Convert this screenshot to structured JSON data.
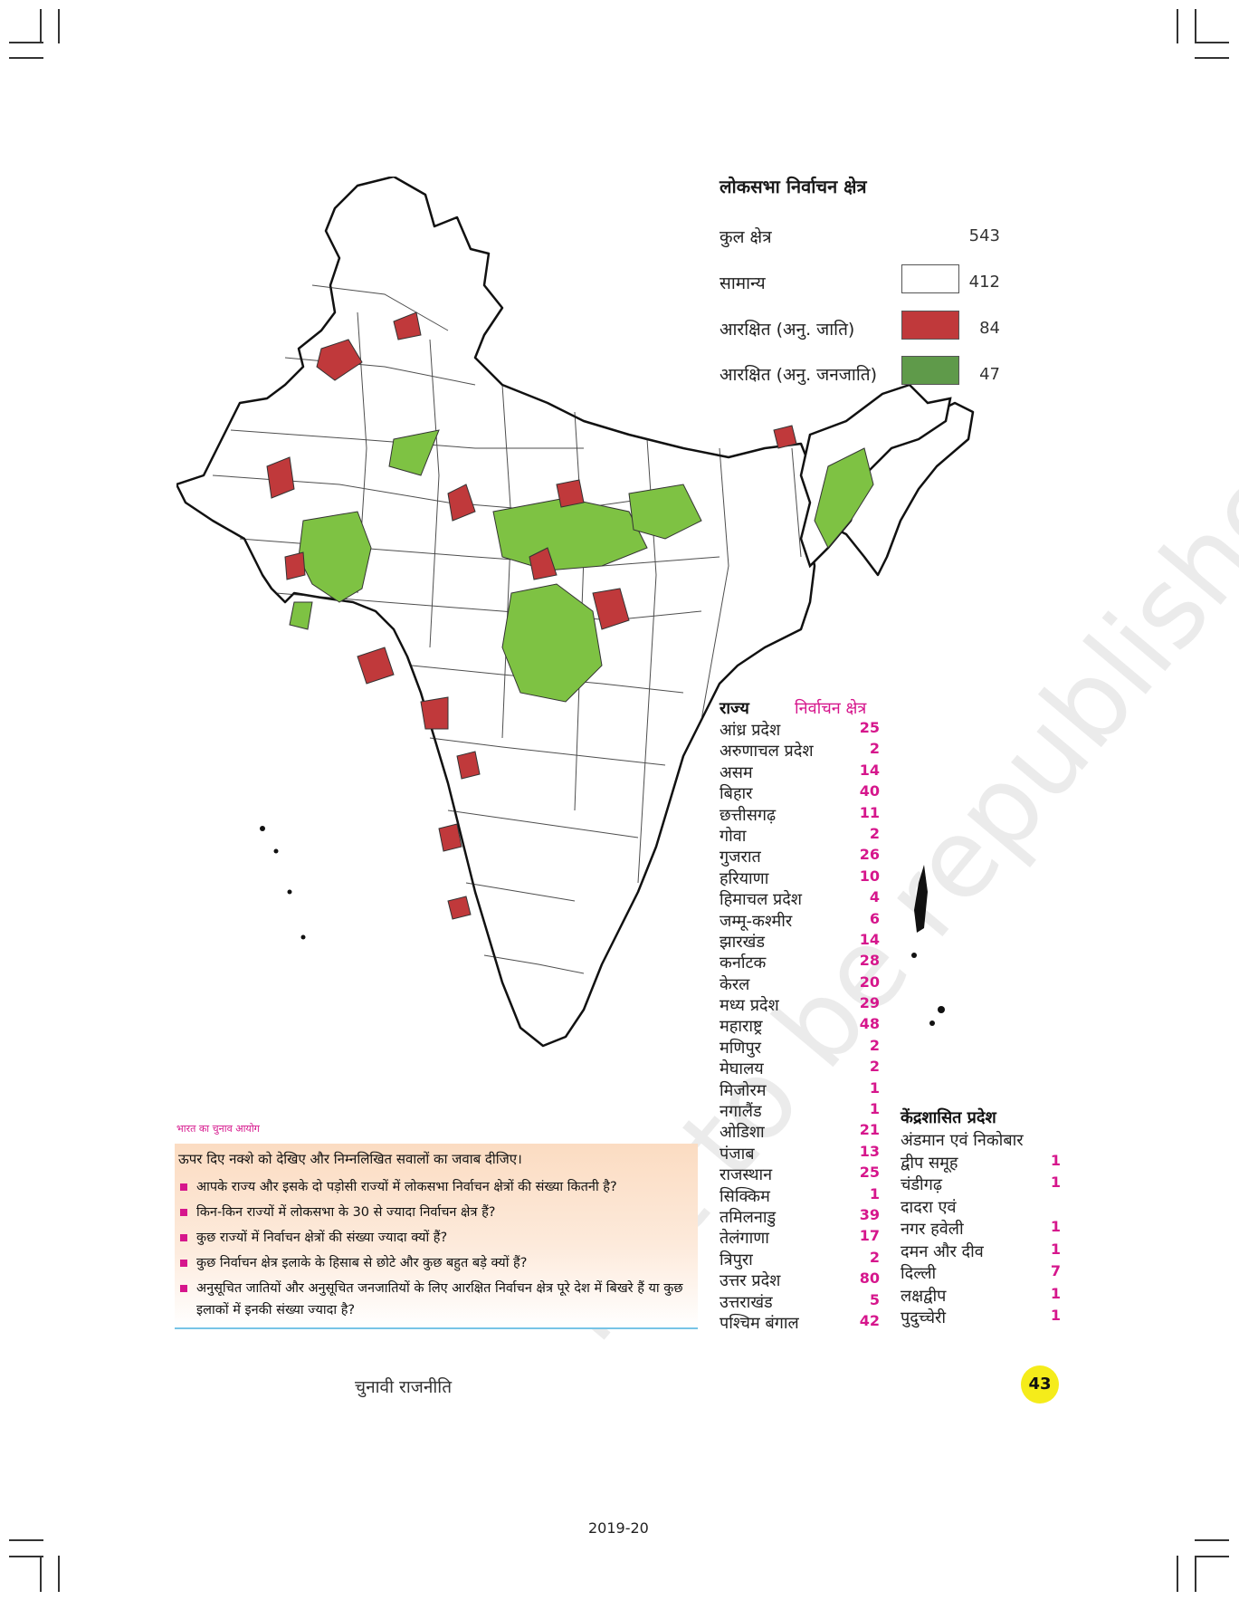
{
  "legend": {
    "title": "लोकसभा निर्वाचन क्षेत्र",
    "rows": [
      {
        "label": "कुल क्षेत्र",
        "value": "543",
        "swatch": null
      },
      {
        "label": "सामान्य",
        "value": "412",
        "swatch": "#ffffff"
      },
      {
        "label": "आरक्षित (अनु. जाति)",
        "value": "84",
        "swatch": "#c0393b"
      },
      {
        "label": "आरक्षित (अनु. जनजाति)",
        "value": "47",
        "swatch": "#5f9a4a"
      }
    ]
  },
  "map": {
    "general_color": "#ffffff",
    "sc_color": "#c0393b",
    "st_color": "#7ec243",
    "outline_color": "#111111"
  },
  "states": {
    "header_state": "राज्य",
    "header_seats": "निर्वाचन क्षेत्र",
    "rows": [
      {
        "name": "आंध्र प्रदेश",
        "seats": "25"
      },
      {
        "name": "अरुणाचल प्रदेश",
        "seats": "2"
      },
      {
        "name": "असम",
        "seats": "14"
      },
      {
        "name": "बिहार",
        "seats": "40"
      },
      {
        "name": "छत्तीसगढ़",
        "seats": "11"
      },
      {
        "name": "गोवा",
        "seats": "2"
      },
      {
        "name": "गुजरात",
        "seats": "26"
      },
      {
        "name": "हरियाणा",
        "seats": "10"
      },
      {
        "name": "हिमाचल प्रदेश",
        "seats": "4"
      },
      {
        "name": "जम्मू-कश्मीर",
        "seats": "6"
      },
      {
        "name": "झारखंड",
        "seats": "14"
      },
      {
        "name": "कर्नाटक",
        "seats": "28"
      },
      {
        "name": "केरल",
        "seats": "20"
      },
      {
        "name": "मध्य प्रदेश",
        "seats": "29"
      },
      {
        "name": "महाराष्ट्र",
        "seats": "48"
      },
      {
        "name": "मणिपुर",
        "seats": "2"
      },
      {
        "name": "मेघालय",
        "seats": "2"
      },
      {
        "name": "मिजोरम",
        "seats": "1"
      },
      {
        "name": "नगालैंड",
        "seats": "1"
      },
      {
        "name": "ओडिशा",
        "seats": "21"
      },
      {
        "name": "पंजाब",
        "seats": "13"
      },
      {
        "name": "राजस्थान",
        "seats": "25"
      },
      {
        "name": "सिक्किम",
        "seats": "1"
      },
      {
        "name": "तमिलनाडु",
        "seats": "39"
      },
      {
        "name": "तेलंगाणा",
        "seats": "17"
      },
      {
        "name": "त्रिपुरा",
        "seats": "2"
      },
      {
        "name": "उत्तर प्रदेश",
        "seats": "80"
      },
      {
        "name": "उत्तराखंड",
        "seats": "5"
      },
      {
        "name": "पश्चिम बंगाल",
        "seats": "42"
      }
    ]
  },
  "uts": {
    "title": "केंद्रशासित प्रदेश",
    "rows": [
      {
        "name": "अंडमान एवं निकोबार",
        "seats": ""
      },
      {
        "name": "द्वीप समूह",
        "seats": "1"
      },
      {
        "name": "चंडीगढ़",
        "seats": "1"
      },
      {
        "name": "दादरा एवं",
        "seats": ""
      },
      {
        "name": "नगर हवेली",
        "seats": "1"
      },
      {
        "name": "दमन और दीव",
        "seats": "1"
      },
      {
        "name": "दिल्ली",
        "seats": "7"
      },
      {
        "name": "लक्षद्वीप",
        "seats": "1"
      },
      {
        "name": "पुदुच्चेरी",
        "seats": "1"
      }
    ]
  },
  "source": "भारत का चुनाव आयोग",
  "questions": {
    "intro": "ऊपर दिए नक्शे को देखिए और निम्नलिखित सवालों का जवाब दीजिए।",
    "items": [
      "आपके राज्य और इसके दो पड़ोसी राज्यों में लोकसभा निर्वाचन क्षेत्रों की संख्या कितनी है?",
      "किन-किन राज्यों में लोकसभा के 30 से ज्यादा निर्वाचन क्षेत्र हैं?",
      "कुछ राज्यों में निर्वाचन क्षेत्रों की संख्या ज्यादा क्यों हैं?",
      "कुछ निर्वाचन क्षेत्र इलाके के हिसाब से छोटे और कुछ बहुत बड़े क्यों हैं?",
      "अनुसूचित जातियों और अनुसूचित जनजातियों के लिए आरक्षित निर्वाचन क्षेत्र पूरे देश में बिखरे हैं या कुछ इलाकों में इनकी संख्या ज्यादा है?"
    ]
  },
  "footer": {
    "chapter": "चुनावी राजनीति",
    "page": "43",
    "year": "2019-20"
  },
  "watermark": "not to be republished"
}
